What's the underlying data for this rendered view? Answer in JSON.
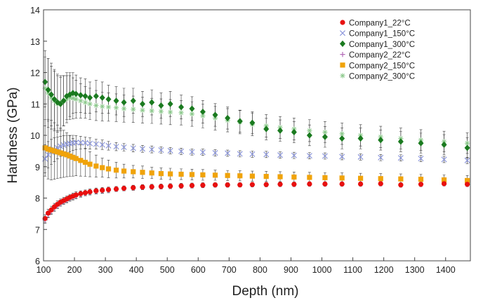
{
  "chart_data": {
    "type": "scatter",
    "xlabel": "Depth (nm)",
    "ylabel": "Hardness (GPa)",
    "xlim": [
      100,
      1480
    ],
    "ylim": [
      6,
      14
    ],
    "xticks": [
      100,
      200,
      300,
      400,
      500,
      600,
      700,
      800,
      900,
      1000,
      1100,
      1200,
      1300,
      1400
    ],
    "xticklabels": [
      "100",
      "200",
      "300",
      "400",
      "500",
      "600",
      "700",
      "800",
      "900",
      "1000",
      "1100",
      "1200",
      "1300",
      "1400"
    ],
    "yticks": [
      6,
      7,
      8,
      9,
      10,
      11,
      12,
      13,
      14
    ],
    "yticklabels": [
      "6",
      "7",
      "8",
      "9",
      "10",
      "11",
      "12",
      "13",
      "14"
    ],
    "grid": false,
    "legend": "top-right",
    "series": [
      {
        "name": "Company1_22°C",
        "marker": "circle",
        "color": "#e8100f",
        "x": [
          105,
          115,
          125,
          135,
          145,
          155,
          165,
          175,
          185,
          195,
          205,
          220,
          235,
          250,
          270,
          290,
          310,
          335,
          360,
          390,
          420,
          450,
          480,
          510,
          545,
          580,
          615,
          655,
          695,
          735,
          775,
          820,
          865,
          910,
          960,
          1010,
          1065,
          1125,
          1190,
          1255,
          1320,
          1395,
          1470
        ],
        "y": [
          7.35,
          7.52,
          7.62,
          7.72,
          7.8,
          7.87,
          7.92,
          7.97,
          8.02,
          8.06,
          8.1,
          8.14,
          8.17,
          8.2,
          8.23,
          8.25,
          8.27,
          8.29,
          8.31,
          8.33,
          8.35,
          8.36,
          8.37,
          8.38,
          8.39,
          8.4,
          8.41,
          8.42,
          8.42,
          8.42,
          8.43,
          8.43,
          8.44,
          8.44,
          8.45,
          8.45,
          8.45,
          8.45,
          8.46,
          8.42,
          8.44,
          8.46,
          8.44
        ],
        "err": [
          0.12,
          0.12,
          0.12,
          0.11,
          0.11,
          0.1,
          0.1,
          0.1,
          0.1,
          0.1,
          0.1,
          0.09,
          0.09,
          0.09,
          0.09,
          0.09,
          0.08,
          0.08,
          0.08,
          0.08,
          0.08,
          0.08,
          0.08,
          0.08,
          0.08,
          0.08,
          0.08,
          0.07,
          0.07,
          0.07,
          0.07,
          0.07,
          0.07,
          0.07,
          0.07,
          0.07,
          0.07,
          0.07,
          0.07,
          0.07,
          0.07,
          0.07,
          0.07
        ]
      },
      {
        "name": "Company1_150°C",
        "marker": "x",
        "color": "#8e98dc",
        "x": [
          105,
          115,
          125,
          135,
          145,
          155,
          165,
          175,
          185,
          195,
          205,
          220,
          235,
          250,
          270,
          290,
          310,
          335,
          360,
          390,
          420,
          450,
          480,
          510,
          545,
          580,
          615,
          655,
          695,
          735,
          775,
          820,
          865,
          910,
          960,
          1010,
          1065,
          1125,
          1190,
          1255,
          1320,
          1395,
          1470
        ],
        "y": [
          9.25,
          9.38,
          9.47,
          9.54,
          9.6,
          9.65,
          9.69,
          9.72,
          9.74,
          9.76,
          9.77,
          9.77,
          9.76,
          9.74,
          9.72,
          9.7,
          9.67,
          9.64,
          9.62,
          9.59,
          9.57,
          9.55,
          9.53,
          9.51,
          9.49,
          9.47,
          9.46,
          9.44,
          9.43,
          9.41,
          9.4,
          9.39,
          9.37,
          9.36,
          9.35,
          9.34,
          9.32,
          9.31,
          9.29,
          9.28,
          9.26,
          9.23,
          9.2
        ],
        "err": [
          0.45,
          0.42,
          0.4,
          0.38,
          0.35,
          0.32,
          0.3,
          0.28,
          0.26,
          0.24,
          0.22,
          0.2,
          0.19,
          0.18,
          0.16,
          0.15,
          0.14,
          0.13,
          0.12,
          0.12,
          0.11,
          0.11,
          0.1,
          0.1,
          0.1,
          0.1,
          0.1,
          0.1,
          0.1,
          0.1,
          0.1,
          0.1,
          0.1,
          0.1,
          0.1,
          0.1,
          0.1,
          0.1,
          0.1,
          0.1,
          0.1,
          0.1,
          0.1
        ]
      },
      {
        "name": "Company1_300°C",
        "marker": "diamond",
        "color": "#1a7a1f",
        "x": [
          105,
          115,
          125,
          135,
          145,
          155,
          165,
          175,
          185,
          195,
          205,
          220,
          235,
          250,
          270,
          290,
          310,
          335,
          360,
          390,
          420,
          450,
          480,
          510,
          545,
          580,
          615,
          655,
          695,
          735,
          775,
          820,
          865,
          910,
          960,
          1010,
          1065,
          1125,
          1190,
          1255,
          1320,
          1395,
          1470
        ],
        "y": [
          11.7,
          11.45,
          11.3,
          11.15,
          11.05,
          11.0,
          11.1,
          11.25,
          11.3,
          11.35,
          11.32,
          11.28,
          11.25,
          11.2,
          11.25,
          11.2,
          11.15,
          11.1,
          11.05,
          11.1,
          11.0,
          11.05,
          10.95,
          11.0,
          10.9,
          10.85,
          10.75,
          10.65,
          10.55,
          10.45,
          10.4,
          10.2,
          10.15,
          10.1,
          10.0,
          9.95,
          9.9,
          9.9,
          9.85,
          9.8,
          9.75,
          9.7,
          9.6
        ],
        "err": [
          0.8,
          1.0,
          1.0,
          0.95,
          0.9,
          0.85,
          0.8,
          0.75,
          0.7,
          0.65,
          0.6,
          0.55,
          0.55,
          0.5,
          0.5,
          0.5,
          0.45,
          0.45,
          0.45,
          0.4,
          0.4,
          0.4,
          0.4,
          0.4,
          0.38,
          0.38,
          0.36,
          0.36,
          0.35,
          0.35,
          0.35,
          0.34,
          0.34,
          0.34,
          0.33,
          0.33,
          0.33,
          0.33,
          0.32,
          0.32,
          0.32,
          0.32,
          0.32
        ]
      },
      {
        "name": "Company2_22°C",
        "marker": "plus",
        "color": "#b36bb8",
        "x": [
          105,
          115,
          125,
          135,
          145,
          155,
          165,
          175,
          185,
          195,
          205,
          220,
          235,
          250,
          270,
          290,
          310,
          335,
          360,
          390,
          420,
          450,
          480,
          510,
          545,
          580,
          615,
          655,
          695,
          735,
          775,
          820,
          865,
          910,
          960,
          1010,
          1065,
          1125,
          1190,
          1255,
          1320,
          1395,
          1470
        ],
        "y": [
          7.3,
          7.47,
          7.58,
          7.68,
          7.76,
          7.83,
          7.89,
          7.94,
          7.99,
          8.03,
          8.07,
          8.11,
          8.15,
          8.18,
          8.21,
          8.23,
          8.25,
          8.28,
          8.3,
          8.32,
          8.34,
          8.35,
          8.36,
          8.37,
          8.38,
          8.39,
          8.4,
          8.41,
          8.41,
          8.42,
          8.42,
          8.43,
          8.43,
          8.43,
          8.44,
          8.44,
          8.44,
          8.44,
          8.45,
          8.41,
          8.43,
          8.45,
          8.43
        ],
        "err": [
          0.1,
          0.1,
          0.1,
          0.1,
          0.09,
          0.09,
          0.09,
          0.09,
          0.09,
          0.09,
          0.09,
          0.08,
          0.08,
          0.08,
          0.08,
          0.08,
          0.08,
          0.07,
          0.07,
          0.07,
          0.07,
          0.07,
          0.07,
          0.07,
          0.07,
          0.07,
          0.07,
          0.06,
          0.06,
          0.06,
          0.06,
          0.06,
          0.06,
          0.06,
          0.06,
          0.06,
          0.06,
          0.06,
          0.06,
          0.06,
          0.06,
          0.06,
          0.06
        ]
      },
      {
        "name": "Company2_150°C",
        "marker": "square",
        "color": "#f0a30a",
        "x": [
          105,
          115,
          125,
          135,
          145,
          155,
          165,
          175,
          185,
          195,
          205,
          220,
          235,
          250,
          270,
          290,
          310,
          335,
          360,
          390,
          420,
          450,
          480,
          510,
          545,
          580,
          615,
          655,
          695,
          735,
          775,
          820,
          865,
          910,
          960,
          1010,
          1065,
          1125,
          1190,
          1255,
          1320,
          1395,
          1470
        ],
        "y": [
          9.6,
          9.56,
          9.53,
          9.5,
          9.47,
          9.44,
          9.41,
          9.38,
          9.34,
          9.3,
          9.26,
          9.2,
          9.14,
          9.08,
          9.02,
          8.97,
          8.93,
          8.89,
          8.86,
          8.84,
          8.82,
          8.8,
          8.78,
          8.77,
          8.76,
          8.75,
          8.74,
          8.73,
          8.72,
          8.71,
          8.7,
          8.69,
          8.68,
          8.67,
          8.66,
          8.65,
          8.64,
          8.63,
          8.62,
          8.61,
          8.6,
          8.58,
          8.56
        ],
        "err": [
          0.9,
          0.95,
          0.95,
          0.9,
          0.85,
          0.8,
          0.75,
          0.7,
          0.65,
          0.6,
          0.55,
          0.5,
          0.45,
          0.4,
          0.35,
          0.3,
          0.28,
          0.25,
          0.22,
          0.2,
          0.2,
          0.18,
          0.18,
          0.18,
          0.17,
          0.17,
          0.17,
          0.16,
          0.16,
          0.16,
          0.16,
          0.16,
          0.16,
          0.16,
          0.16,
          0.16,
          0.16,
          0.16,
          0.16,
          0.16,
          0.16,
          0.16,
          0.16
        ]
      },
      {
        "name": "Company2_300°C",
        "marker": "asterisk",
        "color": "#8cc98c",
        "x": [
          105,
          115,
          125,
          135,
          145,
          155,
          165,
          175,
          185,
          195,
          205,
          220,
          235,
          250,
          270,
          290,
          310,
          335,
          360,
          390,
          420,
          450,
          480,
          510,
          545,
          580,
          615,
          655,
          695,
          735,
          775,
          820,
          865,
          910,
          960,
          1010,
          1065,
          1125,
          1190,
          1255,
          1320,
          1395,
          1470
        ],
        "y": [
          11.5,
          11.35,
          11.2,
          11.1,
          11.0,
          11.05,
          11.1,
          11.15,
          11.2,
          11.18,
          11.15,
          11.1,
          11.05,
          11.0,
          10.95,
          10.92,
          10.9,
          10.88,
          10.85,
          10.83,
          10.8,
          10.78,
          10.76,
          10.74,
          10.72,
          10.68,
          10.62,
          10.55,
          10.48,
          10.42,
          10.35,
          10.3,
          10.25,
          10.2,
          10.15,
          10.1,
          10.05,
          10.0,
          9.95,
          9.9,
          9.85,
          9.8,
          9.75
        ],
        "err": [
          1.2,
          1.1,
          1.0,
          0.95,
          0.9,
          0.85,
          0.8,
          0.75,
          0.7,
          0.65,
          0.6,
          0.55,
          0.5,
          0.5,
          0.48,
          0.46,
          0.45,
          0.44,
          0.43,
          0.42,
          0.41,
          0.4,
          0.4,
          0.4,
          0.39,
          0.39,
          0.38,
          0.38,
          0.37,
          0.37,
          0.36,
          0.36,
          0.35,
          0.35,
          0.35,
          0.34,
          0.34,
          0.34,
          0.34,
          0.33,
          0.33,
          0.33,
          0.33
        ]
      }
    ]
  }
}
